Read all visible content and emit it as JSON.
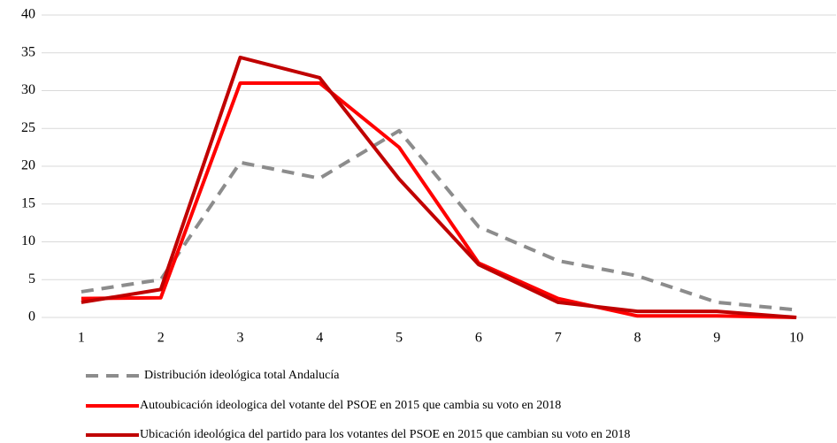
{
  "chart_data": {
    "type": "line",
    "categories": [
      "1",
      "2",
      "3",
      "4",
      "5",
      "6",
      "7",
      "8",
      "9",
      "10"
    ],
    "series": [
      {
        "name": "Distribución ideológica total Andalucía",
        "color": "#8c8c8c",
        "line_style": "dashed",
        "values": [
          3.4,
          5,
          20.5,
          18.4,
          24.7,
          12,
          7.5,
          5.5,
          2,
          1
        ]
      },
      {
        "name": "Autoubicación ideologica del votante del PSOE en 2015 que cambia su voto en 2018",
        "color": "#ff0000",
        "line_style": "solid",
        "values": [
          2.5,
          2.6,
          31,
          31,
          22.5,
          7.2,
          2.5,
          0.2,
          0.2,
          0
        ]
      },
      {
        "name": "Ubicación ideológica del partido para los votantes del PSOE en 2015 que cambian su voto en 2018",
        "color": "#c00000",
        "line_style": "solid",
        "values": [
          2,
          3.7,
          34.4,
          31.7,
          18.3,
          7,
          2,
          0.8,
          0.8,
          0
        ]
      }
    ],
    "ylim": [
      0,
      40
    ],
    "yticks": [
      0,
      5,
      10,
      15,
      20,
      25,
      30,
      35,
      40
    ],
    "grid": true,
    "legend": "bottom"
  }
}
